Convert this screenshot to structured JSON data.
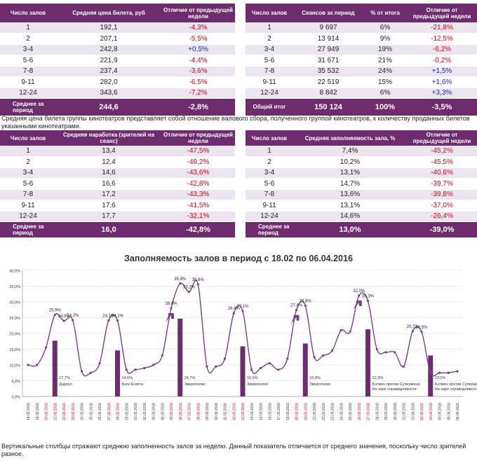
{
  "table_price": {
    "headers": [
      "Число залов",
      "Средняя цена билета, руб",
      "Отличие от предыдущей недели"
    ],
    "rows": [
      {
        "halls": "1",
        "value": "192,1",
        "diff": "-4,3%",
        "sign": "neg"
      },
      {
        "halls": "2",
        "value": "207,1",
        "diff": "-5,5%",
        "sign": "neg"
      },
      {
        "halls": "3-4",
        "value": "242,8",
        "diff": "+0,5%",
        "sign": "pos"
      },
      {
        "halls": "5-6",
        "value": "221,9",
        "diff": "-4,4%",
        "sign": "neg"
      },
      {
        "halls": "7-8",
        "value": "237,4",
        "diff": "-3,6%",
        "sign": "neg"
      },
      {
        "halls": "9-11",
        "value": "282,0",
        "diff": "-6,5%",
        "sign": "neg"
      },
      {
        "halls": "12-24",
        "value": "343,6",
        "diff": "-7,2%",
        "sign": "neg"
      }
    ],
    "footer": {
      "label": "Среднее за период",
      "value": "244,6",
      "diff": "-2,8%"
    }
  },
  "table_sessions": {
    "headers": [
      "Число залов",
      "Сеансов за период",
      "% от итога",
      "Отличие от предыдущей недели"
    ],
    "rows": [
      {
        "halls": "1",
        "value": "9 697",
        "share": "6%",
        "diff": "-21,8%",
        "sign": "neg"
      },
      {
        "halls": "2",
        "value": "13 914",
        "share": "9%",
        "diff": "-12,5%",
        "sign": "neg"
      },
      {
        "halls": "3-4",
        "value": "27 949",
        "share": "19%",
        "diff": "-6,2%",
        "sign": "neg"
      },
      {
        "halls": "5-6",
        "value": "31 671",
        "share": "21%",
        "diff": "-0,2%",
        "sign": "neg"
      },
      {
        "halls": "7-8",
        "value": "35 532",
        "share": "24%",
        "diff": "+1,5%",
        "sign": "pos"
      },
      {
        "halls": "9-11",
        "value": "22 519",
        "share": "15%",
        "diff": "+1,6%",
        "sign": "pos"
      },
      {
        "halls": "12-24",
        "value": "8 842",
        "share": "6%",
        "diff": "+3,3%",
        "sign": "pos"
      }
    ],
    "footer": {
      "label": "Общий итог",
      "value": "150 124",
      "share": "100%",
      "diff": "-3,5%"
    }
  },
  "note_top": "Средняя цена билета группы кинотеатров представляет собой отношение валового сбора, полученного группой кинотеатров, к количеству проданных билетов указанными кинотеатрами.",
  "table_load": {
    "headers": [
      "Число залов",
      "Средняя наработка (зрителей на сеанс)",
      "Отличие от предыдущей недели"
    ],
    "rows": [
      {
        "halls": "1",
        "value": "13,4",
        "diff": "-47,5%",
        "sign": "neg"
      },
      {
        "halls": "2",
        "value": "12,4",
        "diff": "-49,2%",
        "sign": "neg"
      },
      {
        "halls": "3-4",
        "value": "14,6",
        "diff": "-43,6%",
        "sign": "neg"
      },
      {
        "halls": "5-6",
        "value": "16,6",
        "diff": "-42,8%",
        "sign": "neg"
      },
      {
        "halls": "7-8",
        "value": "17,2",
        "diff": "-43,3%",
        "sign": "neg"
      },
      {
        "halls": "9-11",
        "value": "17,6",
        "diff": "-41,5%",
        "sign": "neg"
      },
      {
        "halls": "12-24",
        "value": "17,7",
        "diff": "-32,1%",
        "sign": "neg"
      }
    ],
    "footer": {
      "label": "Среднее за период",
      "value": "16,0",
      "diff": "-42,8%"
    }
  },
  "table_occupancy": {
    "headers": [
      "Число залов",
      "Средняя заполняемость зала, %",
      "Отличие от предыдущей недели"
    ],
    "rows": [
      {
        "halls": "1",
        "value": "7,4%",
        "diff": "-45,2%",
        "sign": "neg"
      },
      {
        "halls": "2",
        "value": "10,2%",
        "diff": "-45,5%",
        "sign": "neg"
      },
      {
        "halls": "3-4",
        "value": "13,1%",
        "diff": "-40,6%",
        "sign": "neg"
      },
      {
        "halls": "5-6",
        "value": "14,7%",
        "diff": "-39,7%",
        "sign": "neg"
      },
      {
        "halls": "7-8",
        "value": "13,6%",
        "diff": "-39,8%",
        "sign": "neg"
      },
      {
        "halls": "9-11",
        "value": "13,1%",
        "diff": "-37,0%",
        "sign": "neg"
      },
      {
        "halls": "12-24",
        "value": "14,6%",
        "diff": "-26,4%",
        "sign": "neg"
      }
    ],
    "footer": {
      "label": "Среднее за период",
      "value": "13,0%",
      "diff": "-39,0%"
    }
  },
  "note_bottom": "Вертикальные столбцы отражают среднюю заполненность залов за неделю. Данный показатель отличается от среднего значения, поскольку число зрителей разное.",
  "colors": {
    "accent": "#6e2c6f",
    "line": "#7b3f8c",
    "bar": "#6e2c6f",
    "negative": "#e0001b",
    "positive": "#1f1fd0",
    "weekend_label": "#d0001b"
  },
  "chart_data": {
    "type": "line",
    "title": "Заполняемость залов в период с 18.02 по 06.04.2016",
    "ylim": [
      0,
      40
    ],
    "yticks": [
      "0,0%",
      "5,0%",
      "10,0%",
      "15,0%",
      "20,0%",
      "25,0%",
      "30,0%",
      "35,0%",
      "40,0%"
    ],
    "x": [
      "18.02.2016",
      "19.02.2016",
      "20.02.2016",
      "21.02.2016",
      "22.02.2016",
      "23.02.2016",
      "24.02.2016",
      "25.02.2016",
      "26.02.2016",
      "27.02.2016",
      "28.02.2016",
      "29.02.2016",
      "01.03.2016",
      "02.03.2016",
      "03.03.2016",
      "04.03.2016",
      "05.03.2016",
      "06.03.2016",
      "07.03.2016",
      "08.03.2016",
      "09.03.2016",
      "10.03.2016",
      "11.03.2016",
      "12.03.2016",
      "13.03.2016",
      "14.03.2016",
      "15.03.2016",
      "16.03.2016",
      "17.03.2016",
      "18.03.2016",
      "19.03.2016",
      "20.03.2016",
      "21.03.2016",
      "22.03.2016",
      "23.03.2016",
      "24.03.2016",
      "25.03.2016",
      "26.03.2016",
      "27.03.2016",
      "28.03.2016",
      "29.03.2016",
      "30.03.2016",
      "31.03.2016",
      "01.04.2016",
      "02.04.2016",
      "03.04.2016",
      "04.04.2016",
      "05.04.2016",
      "06.04.2016"
    ],
    "weekend_dates": [
      "20.02.2016",
      "21.02.2016",
      "22.02.2016",
      "23.02.2016",
      "27.02.2016",
      "28.02.2016",
      "05.03.2016",
      "06.03.2016",
      "07.03.2016",
      "08.03.2016",
      "12.03.2016",
      "13.03.2016",
      "19.03.2016",
      "20.03.2016",
      "26.03.2016",
      "27.03.2016",
      "02.04.2016",
      "03.04.2016"
    ],
    "series": [
      {
        "name": "Заполняемость",
        "values": [
          10.0,
          10.0,
          15.5,
          25.9,
          24.0,
          24.2,
          8.0,
          7.5,
          10.5,
          24.1,
          24.1,
          8.5,
          8.5,
          9.0,
          10.0,
          13.0,
          28.0,
          35.8,
          33.2,
          35.6,
          9.5,
          9.5,
          12.0,
          26.4,
          27.1,
          8.5,
          9.0,
          10.5,
          8.5,
          12.0,
          27.4,
          28.8,
          12.5,
          13.0,
          14.5,
          21.0,
          20.5,
          32.0,
          30.3,
          15.0,
          14.0,
          14.0,
          9.5,
          20.7,
          20.5,
          7.5,
          7.5,
          7.5,
          8.0
        ]
      }
    ],
    "point_labels": [
      {
        "index": 3,
        "text": "25,9%"
      },
      {
        "index": 4,
        "text": "24,0%"
      },
      {
        "index": 5,
        "text": "24,2%"
      },
      {
        "index": 9,
        "text": "24,1%"
      },
      {
        "index": 10,
        "text": "24,1%"
      },
      {
        "index": 16,
        "text": "28,0%"
      },
      {
        "index": 17,
        "text": "35,8%"
      },
      {
        "index": 18,
        "text": "33,2%"
      },
      {
        "index": 19,
        "text": "35,6%"
      },
      {
        "index": 23,
        "text": "26,4%"
      },
      {
        "index": 24,
        "text": "27,1%"
      },
      {
        "index": 30,
        "text": "27,4%"
      },
      {
        "index": 31,
        "text": "28,8%"
      },
      {
        "index": 37,
        "text": "32,0%"
      },
      {
        "index": 38,
        "text": "30,3%"
      },
      {
        "index": 43,
        "text": "20,7%"
      },
      {
        "index": 44,
        "text": "20,5%"
      }
    ],
    "bars": [
      {
        "index": 3,
        "value": 17.7,
        "label": "17,7%",
        "film": "Дэдпул"
      },
      {
        "index": 10,
        "value": 14.6,
        "label": "14,6%",
        "film": "Боги Египта"
      },
      {
        "index": 17,
        "value": 24.7,
        "label": "24,7%",
        "film": "Зверополис"
      },
      {
        "index": 24,
        "value": 15.9,
        "label": "15,9%",
        "film": "Зверополис"
      },
      {
        "index": 31,
        "value": 16.8,
        "label": "16,8%",
        "film": "Зверополис"
      },
      {
        "index": 38,
        "value": 21.3,
        "label": "21,3%",
        "film": "Бэтмен против Супермена: На заре справедливости"
      },
      {
        "index": 45,
        "value": 13.0,
        "label": "13,0%",
        "film": "Бэтмен против Супермена: На заре справедливости"
      }
    ],
    "arrows_at": [
      16,
      30,
      37
    ]
  }
}
